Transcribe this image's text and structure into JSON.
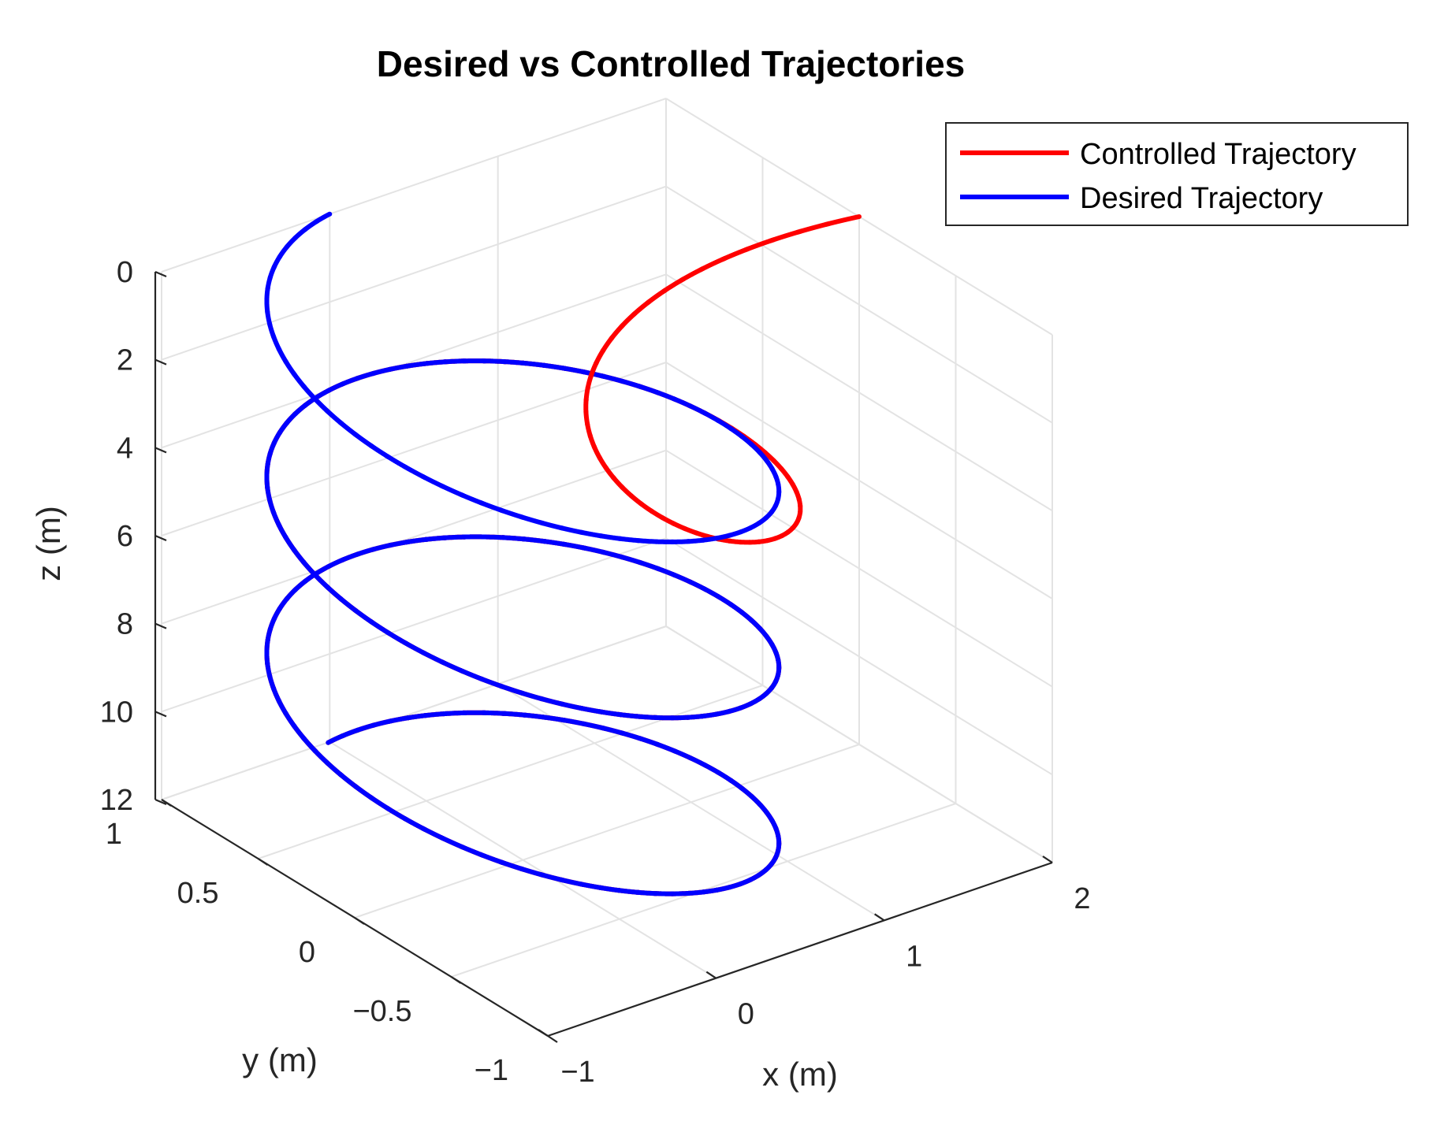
{
  "chart_data": {
    "type": "line3d",
    "title": "Desired vs Controlled Trajectories",
    "xlabel": "x (m)",
    "ylabel": "y (m)",
    "zlabel": "z (m)",
    "xlim": [
      -1,
      2
    ],
    "ylim": [
      -1,
      1
    ],
    "zlim": [
      0,
      12
    ],
    "z_direction": "reverse",
    "xticks": [
      "−1",
      "0",
      "1",
      "2"
    ],
    "yticks": [
      "−1",
      "−0.5",
      "0",
      "0.5",
      "1"
    ],
    "zticks": [
      "0",
      "2",
      "4",
      "6",
      "8",
      "10",
      "12"
    ],
    "grid": true,
    "legend_position": "top-right",
    "series": [
      {
        "name": "Controlled Trajectory",
        "color": "#ff0000",
        "description": "starts at x=2, y=0, z=0 and converges onto the desired helix by about z=3",
        "start": [
          2,
          0,
          0
        ],
        "converged_z": 3
      },
      {
        "name": "Desired Trajectory",
        "color": "#0000ff",
        "helix": {
          "radius": 1,
          "z_start": 0,
          "z_end": 12,
          "turns": 3,
          "start_angle_deg": 90
        }
      }
    ]
  }
}
